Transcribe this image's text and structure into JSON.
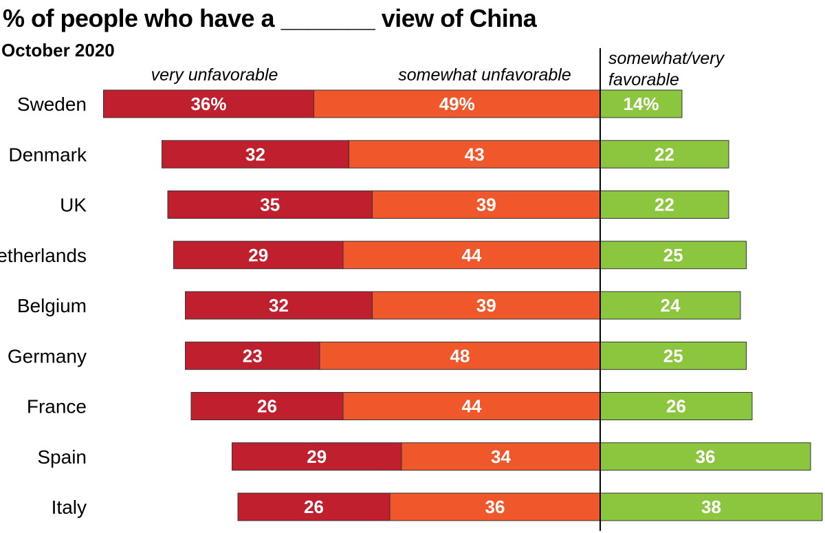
{
  "chart_data": {
    "type": "bar",
    "title": "% of people who have a _______ view of China",
    "subtitle": "October 2020",
    "column_headers": {
      "very_unfavorable": "very unfavorable",
      "somewhat_unfavorable": "somewhat unfavorable",
      "favorable_line1": "somewhat/very",
      "favorable_line2": "favorable"
    },
    "categories": [
      "Sweden",
      "Denmark",
      "UK",
      "Netherlands",
      "Belgium",
      "Germany",
      "France",
      "Spain",
      "Italy"
    ],
    "series": [
      {
        "name": "very unfavorable",
        "color": "#c01f2e",
        "values": [
          36,
          32,
          35,
          29,
          32,
          23,
          26,
          29,
          26
        ],
        "labels": [
          "36%",
          "32",
          "35",
          "29",
          "32",
          "23",
          "26",
          "29",
          "26"
        ]
      },
      {
        "name": "somewhat unfavorable",
        "color": "#f0582c",
        "values": [
          49,
          43,
          39,
          44,
          39,
          48,
          44,
          34,
          36
        ],
        "labels": [
          "49%",
          "43",
          "39",
          "44",
          "39",
          "48",
          "44",
          "34",
          "36"
        ]
      },
      {
        "name": "somewhat/very favorable",
        "color": "#8cc63f",
        "values": [
          14,
          22,
          22,
          25,
          24,
          25,
          26,
          36,
          38
        ],
        "labels": [
          "14%",
          "22",
          "22",
          "25",
          "24",
          "25",
          "26",
          "36",
          "38"
        ]
      }
    ],
    "legend_placement": "top, above each segment group",
    "grid": false
  }
}
